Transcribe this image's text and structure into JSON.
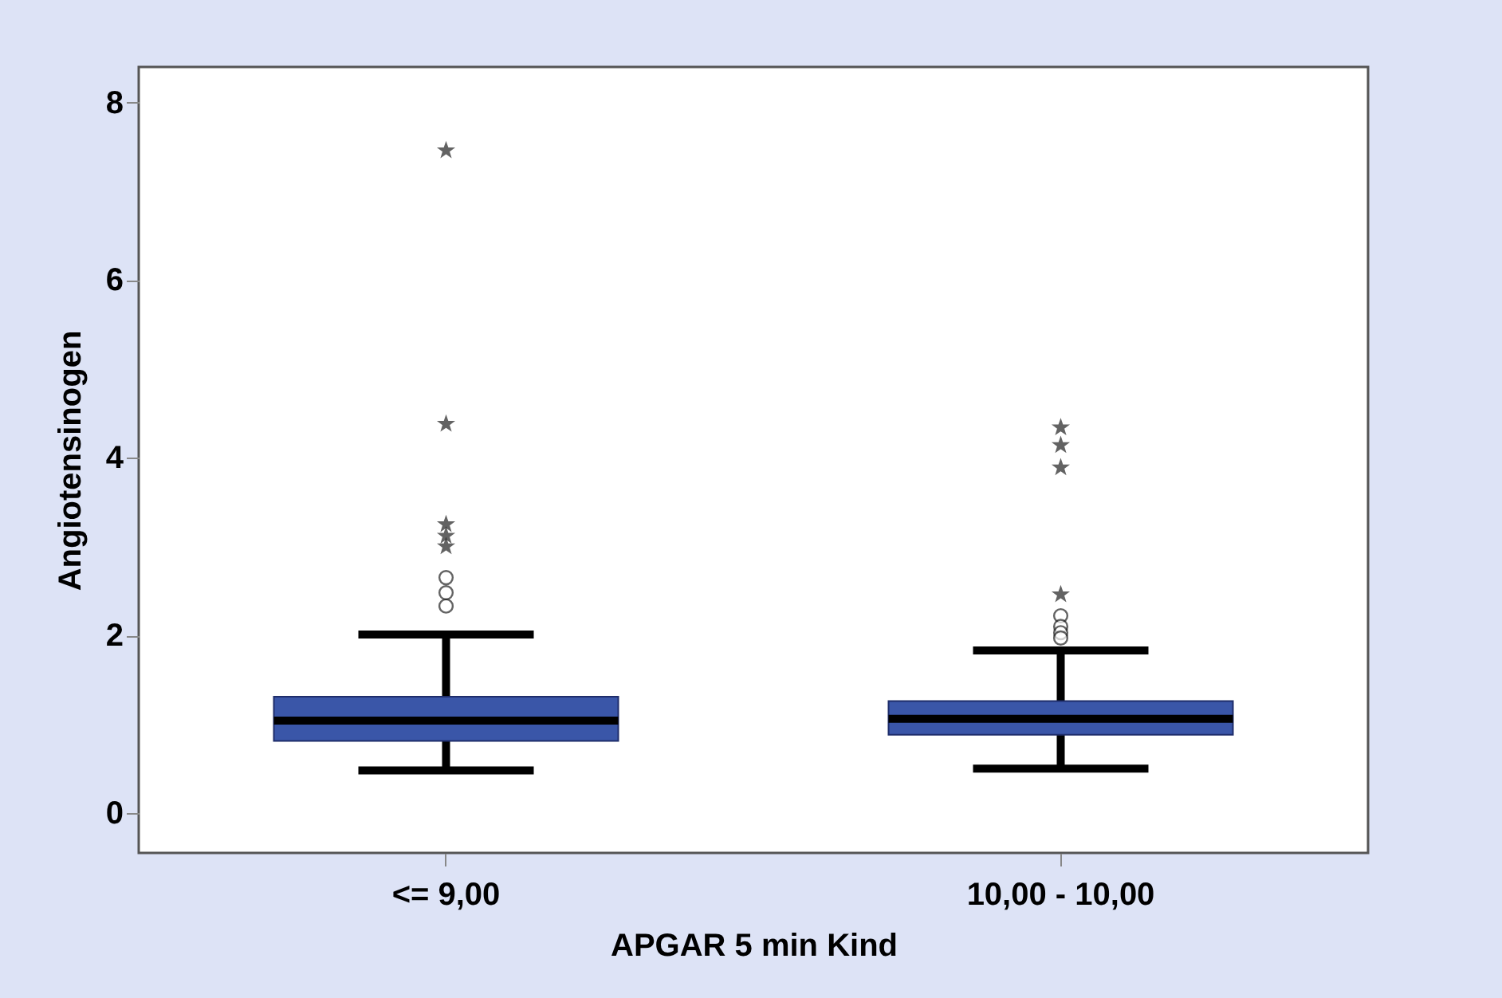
{
  "chart_data": {
    "type": "box",
    "xlabel": "APGAR 5 min Kind",
    "ylabel": "Angiotensinogen",
    "categories": [
      "<= 9,00",
      "10,00 - 10,00"
    ],
    "series": [
      {
        "color": "#3a56a8",
        "boxes": [
          {
            "low": 0.48,
            "q1": 0.81,
            "median": 1.04,
            "q3": 1.31,
            "high": 2.01,
            "outliers": [
              7.46,
              4.38,
              3.25,
              3.12,
              3.0,
              2.65,
              2.48,
              2.33
            ]
          },
          {
            "low": 0.5,
            "q1": 0.88,
            "median": 1.06,
            "q3": 1.26,
            "high": 1.83,
            "outliers": [
              4.34,
              4.14,
              3.89,
              2.46,
              2.22,
              2.1,
              2.03,
              1.97
            ]
          }
        ]
      }
    ],
    "ylim": [
      -0.45,
      8.4
    ],
    "yticks": [
      0,
      2,
      4,
      6,
      8
    ],
    "grid": false
  }
}
